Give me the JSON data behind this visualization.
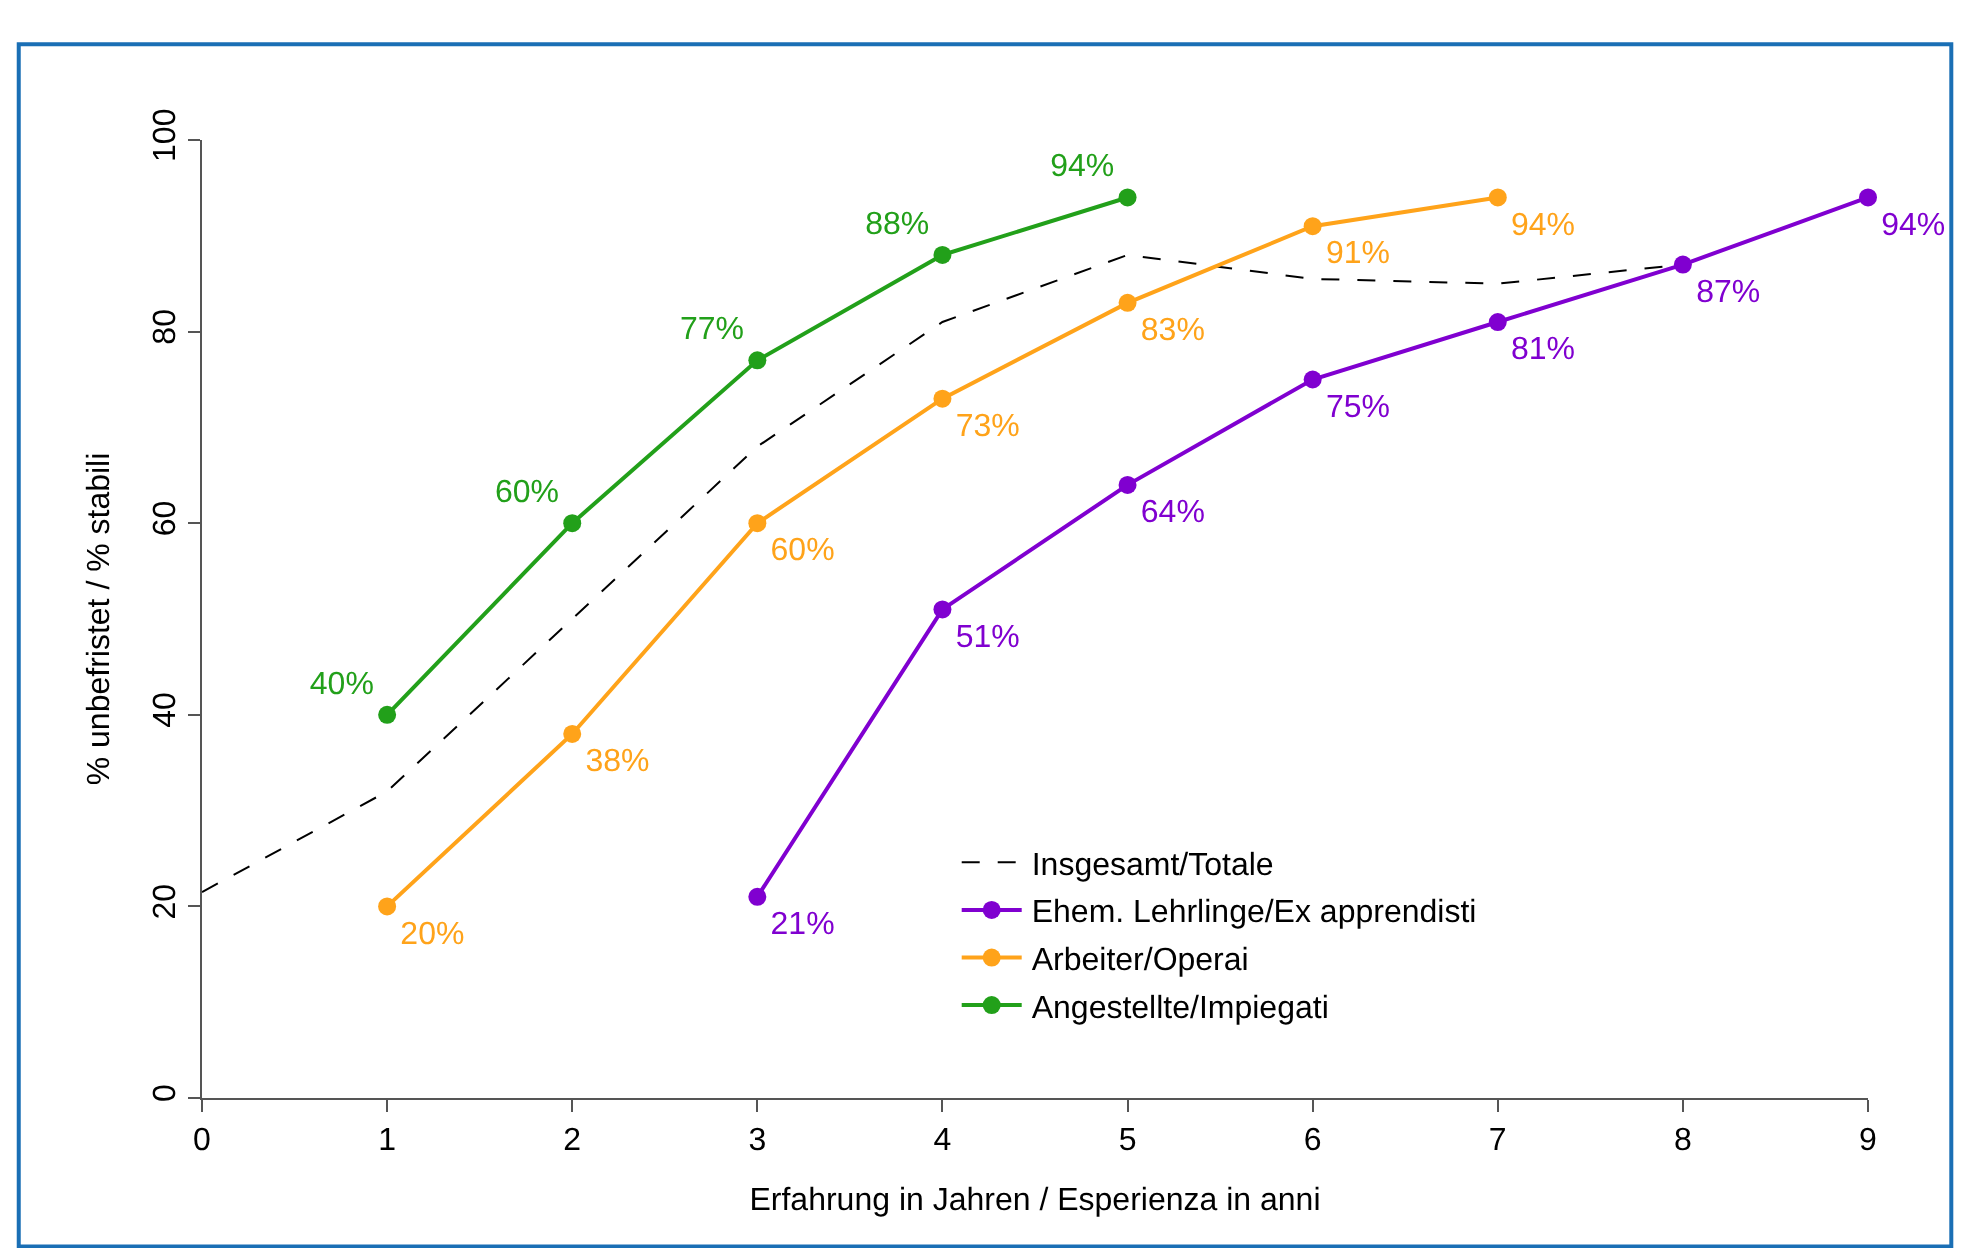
{
  "chart_data": {
    "type": "line",
    "xlabel": "Erfahrung in Jahren / Esperienza in anni",
    "ylabel": "% unbefristet / % stabili",
    "xlim": [
      0,
      9
    ],
    "xticks": [
      0,
      1,
      2,
      3,
      4,
      5,
      6,
      7,
      8,
      9
    ],
    "ylim": [
      0,
      100
    ],
    "yticks": [
      0,
      20,
      40,
      60,
      80,
      100
    ],
    "legend": "bottom right",
    "marker": "circle",
    "series": [
      {
        "name": "Insgesamt/Totale",
        "color": "#000000",
        "line_style": "dashed",
        "marker": "none",
        "x": [
          0,
          1,
          2,
          3,
          4,
          5,
          6,
          7,
          8
        ],
        "values": [
          21.5,
          32,
          50,
          68,
          81,
          88,
          85.5,
          85,
          87
        ]
      },
      {
        "name": "Ehem. Lehrlinge/Ex apprendisti",
        "color": "#8000d0",
        "x": [
          3,
          4,
          5,
          6,
          7,
          8,
          9
        ],
        "values": [
          21,
          51,
          64,
          75,
          81,
          87,
          94
        ],
        "value_labels": [
          "21%",
          "51%",
          "64%",
          "75%",
          "81%",
          "87%",
          "94%"
        ]
      },
      {
        "name": "Arbeiter/Operai",
        "color": "#ffa31a",
        "x": [
          1,
          2,
          3,
          4,
          5,
          6,
          7
        ],
        "values": [
          20,
          38,
          60,
          73,
          83,
          91,
          94
        ],
        "value_labels": [
          "20%",
          "38%",
          "60%",
          "73%",
          "83%",
          "91%",
          "94%"
        ]
      },
      {
        "name": "Angestellte/Impiegati",
        "color": "#22a01a",
        "x": [
          1,
          2,
          3,
          4,
          5
        ],
        "values": [
          40,
          60,
          77,
          88,
          94
        ],
        "value_labels": [
          "40%",
          "60%",
          "77%",
          "88%",
          "94%"
        ]
      }
    ]
  }
}
